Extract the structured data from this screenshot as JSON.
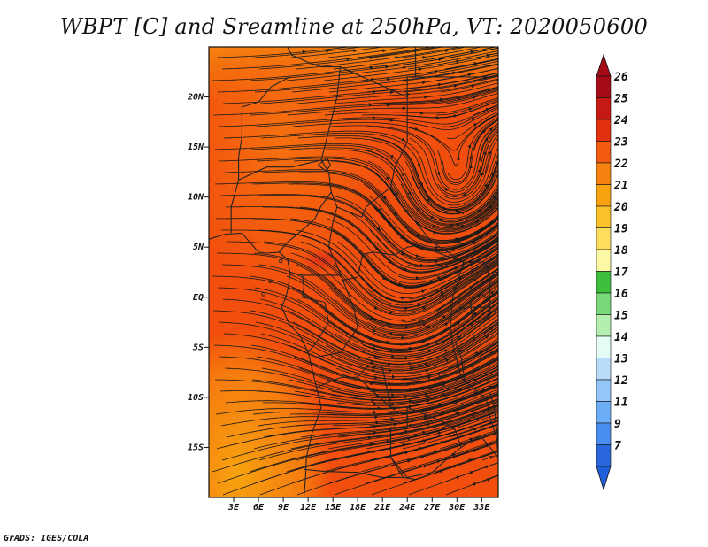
{
  "title": "WBPT [C] and Sreamline at 250hPa, VT: 2020050600",
  "credit": "GrADS: IGES/COLA",
  "map": {
    "lon_range": [
      0,
      35
    ],
    "lat_range": [
      -20,
      25
    ],
    "x_ticks": [
      {
        "value": 3,
        "label": "3E"
      },
      {
        "value": 6,
        "label": "6E"
      },
      {
        "value": 9,
        "label": "9E"
      },
      {
        "value": 12,
        "label": "12E"
      },
      {
        "value": 15,
        "label": "15E"
      },
      {
        "value": 18,
        "label": "18E"
      },
      {
        "value": 21,
        "label": "21E"
      },
      {
        "value": 24,
        "label": "24E"
      },
      {
        "value": 27,
        "label": "27E"
      },
      {
        "value": 30,
        "label": "30E"
      },
      {
        "value": 33,
        "label": "33E"
      }
    ],
    "y_ticks": [
      {
        "value": 20,
        "label": "20N"
      },
      {
        "value": 15,
        "label": "15N"
      },
      {
        "value": 10,
        "label": "10N"
      },
      {
        "value": 5,
        "label": "5N"
      },
      {
        "value": 0,
        "label": "EQ"
      },
      {
        "value": -5,
        "label": "5S"
      },
      {
        "value": -10,
        "label": "10S"
      },
      {
        "value": -15,
        "label": "15S"
      }
    ],
    "field_colors": {
      "base": "#f24f0e",
      "upper_left": "#f5700f",
      "north_band": "#f6880f",
      "south_west": "#f7a30f",
      "hotspot": "#d92c1a",
      "coast": "#222222"
    }
  },
  "colorbar": {
    "levels": [
      {
        "label": "26",
        "color": "#a50b16"
      },
      {
        "label": "25",
        "color": "#c51a13"
      },
      {
        "label": "24",
        "color": "#e2310f"
      },
      {
        "label": "23",
        "color": "#f25a0f"
      },
      {
        "label": "22",
        "color": "#f6820f"
      },
      {
        "label": "21",
        "color": "#f8a20f"
      },
      {
        "label": "20",
        "color": "#fac12a"
      },
      {
        "label": "19",
        "color": "#fdde5e"
      },
      {
        "label": "18",
        "color": "#fdf8a4"
      },
      {
        "label": "17",
        "color": "#3cbf3c"
      },
      {
        "label": "16",
        "color": "#79d97a"
      },
      {
        "label": "15",
        "color": "#b4efaf"
      },
      {
        "label": "14",
        "color": "#e5fbf5"
      },
      {
        "label": "13",
        "color": "#b8ddfb"
      },
      {
        "label": "12",
        "color": "#94c6f9"
      },
      {
        "label": "11",
        "color": "#6caef6"
      },
      {
        "label": "9",
        "color": "#4b8ef2"
      },
      {
        "label": "7",
        "color": "#2a66dc"
      }
    ],
    "bottom_arrow_color": "#1f5fd9"
  }
}
